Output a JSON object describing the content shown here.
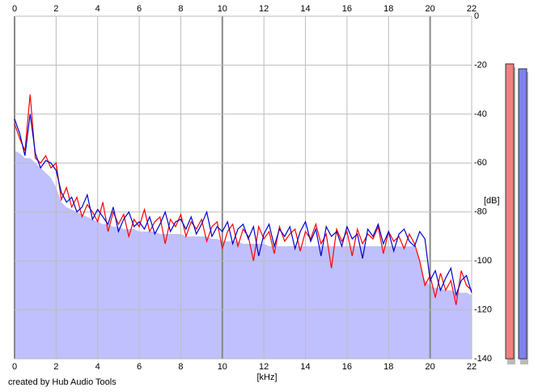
{
  "chart_data": {
    "type": "spectrum",
    "xlabel": "[kHz]",
    "ylabel": "[dB]",
    "footer": "created by Hub Audio Tools",
    "xlim": [
      0,
      22
    ],
    "xticks": [
      0,
      2,
      4,
      6,
      8,
      10,
      12,
      14,
      16,
      18,
      20,
      22
    ],
    "ylim": [
      -140,
      0
    ],
    "yticks": [
      0,
      -20,
      -40,
      -60,
      -80,
      -100,
      -120,
      -140
    ],
    "grid": true,
    "x": [
      0,
      0.25,
      0.5,
      0.75,
      1,
      1.25,
      1.5,
      1.75,
      2,
      2.25,
      2.5,
      2.75,
      3,
      3.25,
      3.5,
      3.75,
      4,
      4.25,
      4.5,
      4.75,
      5,
      5.25,
      5.5,
      5.75,
      6,
      6.25,
      6.5,
      6.75,
      7,
      7.25,
      7.5,
      7.75,
      8,
      8.25,
      8.5,
      8.75,
      9,
      9.25,
      9.5,
      9.75,
      10,
      10.25,
      10.5,
      10.75,
      11,
      11.25,
      11.5,
      11.75,
      12,
      12.25,
      12.5,
      12.75,
      13,
      13.25,
      13.5,
      13.75,
      14,
      14.25,
      14.5,
      14.75,
      15,
      15.25,
      15.5,
      15.75,
      16,
      16.25,
      16.5,
      16.75,
      17,
      17.25,
      17.5,
      17.75,
      18,
      18.25,
      18.5,
      18.75,
      19,
      19.25,
      19.5,
      19.75,
      20,
      20.25,
      20.5,
      20.75,
      21,
      21.25,
      21.5,
      21.75,
      22
    ],
    "series": [
      {
        "color": "#c0c0ff",
        "fill": true,
        "values": [
          -55,
          -56,
          -58,
          -58,
          -60,
          -62,
          -64,
          -66,
          -70,
          -76,
          -78,
          -79,
          -80,
          -81,
          -82,
          -83,
          -84,
          -85,
          -85,
          -86,
          -86,
          -87,
          -87,
          -87,
          -88,
          -88,
          -88,
          -88,
          -89,
          -89,
          -89,
          -89,
          -89,
          -90,
          -90,
          -90,
          -90,
          -90,
          -91,
          -91,
          -92,
          -92,
          -92,
          -92,
          -93,
          -93,
          -93,
          -93,
          -93,
          -94,
          -94,
          -94,
          -94,
          -94,
          -94,
          -94,
          -94,
          -94,
          -94,
          -94,
          -94,
          -94,
          -94,
          -94,
          -94,
          -94,
          -94,
          -94,
          -94,
          -94,
          -94,
          -94,
          -94,
          -94,
          -94,
          -94,
          -94,
          -94,
          -100,
          -108,
          -110,
          -111,
          -111,
          -112,
          -112,
          -113,
          -113,
          -113,
          -114
        ]
      },
      {
        "color": "#ff0000",
        "values": [
          -44,
          -50,
          -55,
          -32,
          -58,
          -60,
          -57,
          -62,
          -60,
          -75,
          -70,
          -78,
          -74,
          -82,
          -77,
          -80,
          -84,
          -76,
          -88,
          -80,
          -85,
          -81,
          -90,
          -83,
          -86,
          -79,
          -88,
          -84,
          -82,
          -93,
          -83,
          -86,
          -81,
          -90,
          -84,
          -87,
          -83,
          -92,
          -86,
          -84,
          -95,
          -88,
          -85,
          -94,
          -87,
          -90,
          -100,
          -86,
          -91,
          -88,
          -97,
          -86,
          -92,
          -89,
          -87,
          -96,
          -88,
          -91,
          -85,
          -93,
          -89,
          -103,
          -87,
          -92,
          -88,
          -98,
          -87,
          -93,
          -89,
          -91,
          -86,
          -97,
          -88,
          -92,
          -90,
          -95,
          -89,
          -93,
          -100,
          -110,
          -106,
          -115,
          -105,
          -112,
          -108,
          -118,
          -104,
          -110,
          -112
        ]
      },
      {
        "color": "#0000cc",
        "values": [
          -42,
          -48,
          -57,
          -40,
          -56,
          -62,
          -59,
          -60,
          -63,
          -72,
          -76,
          -74,
          -80,
          -78,
          -73,
          -83,
          -79,
          -82,
          -85,
          -78,
          -88,
          -83,
          -80,
          -86,
          -84,
          -87,
          -82,
          -89,
          -85,
          -80,
          -88,
          -84,
          -83,
          -87,
          -82,
          -89,
          -85,
          -80,
          -90,
          -86,
          -88,
          -84,
          -93,
          -87,
          -85,
          -91,
          -86,
          -98,
          -89,
          -85,
          -94,
          -87,
          -90,
          -86,
          -95,
          -88,
          -84,
          -92,
          -87,
          -98,
          -86,
          -90,
          -88,
          -94,
          -86,
          -91,
          -89,
          -99,
          -87,
          -90,
          -85,
          -93,
          -88,
          -96,
          -89,
          -87,
          -92,
          -94,
          -88,
          -91,
          -108,
          -104,
          -112,
          -107,
          -103,
          -114,
          -108,
          -106,
          -113
        ]
      }
    ],
    "levels": [
      {
        "color": "#f08080",
        "value": -19.5
      },
      {
        "color": "#8080f0",
        "value": -21.5
      }
    ]
  }
}
